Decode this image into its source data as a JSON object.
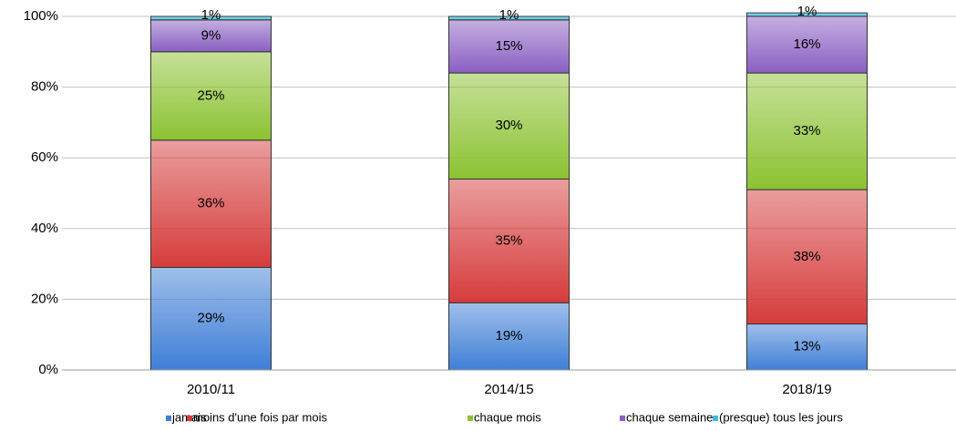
{
  "chart_data": {
    "type": "stacked_bar",
    "categories": [
      "2010/11",
      "2014/15",
      "2018/19"
    ],
    "series": [
      {
        "name": "jamais",
        "color": "#3f7fd6",
        "values": [
          29,
          19,
          13
        ],
        "value_labels": [
          "29%",
          "19%",
          "13%"
        ]
      },
      {
        "name": "moins d'une fois par mois",
        "color": "#d63c3c",
        "values": [
          36,
          35,
          38
        ],
        "value_labels": [
          "36%",
          "35%",
          "38%"
        ]
      },
      {
        "name": "chaque mois",
        "color": "#8cc232",
        "values": [
          25,
          30,
          33
        ],
        "value_labels": [
          "25%",
          "30%",
          "33%"
        ]
      },
      {
        "name": "chaque semaine",
        "color": "#8a5fc2",
        "values": [
          9,
          15,
          16
        ],
        "value_labels": [
          "9%",
          "15%",
          "16%"
        ]
      },
      {
        "name": "(presque) tous les jours",
        "color": "#3fbfdc",
        "values": [
          1,
          1,
          1
        ],
        "value_labels": [
          "1%",
          "1%",
          "1%"
        ]
      }
    ],
    "ylim": [
      0,
      100
    ],
    "yticks": [
      {
        "value": 0,
        "label": "0%"
      },
      {
        "value": 20,
        "label": "20%"
      },
      {
        "value": 40,
        "label": "40%"
      },
      {
        "value": 60,
        "label": "60%"
      },
      {
        "value": 80,
        "label": "80%"
      },
      {
        "value": 100,
        "label": "100%"
      }
    ],
    "grid": true,
    "legend": "bottom"
  }
}
